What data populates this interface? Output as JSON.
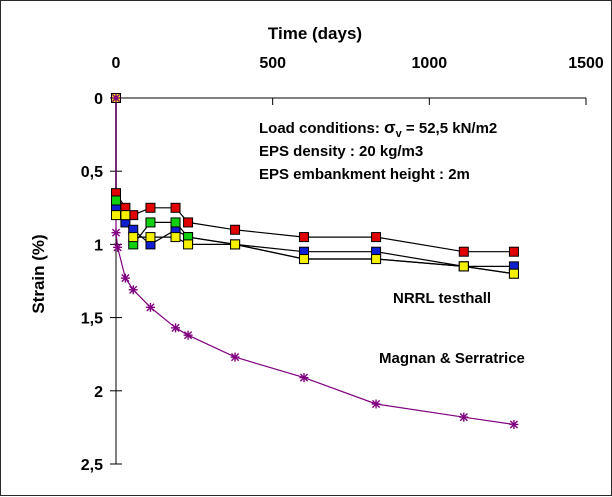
{
  "chart_data": {
    "type": "line",
    "title": "",
    "xlabel": "Time (days)",
    "ylabel": "Strain (%)",
    "x_axis_position": "top",
    "y_axis_inverted": true,
    "xlim": [
      0,
      1500
    ],
    "ylim": [
      0,
      2.5
    ],
    "x_ticks": [
      0,
      500,
      1000,
      1500
    ],
    "x_tick_labels": [
      "0",
      "500",
      "1000",
      "1500"
    ],
    "y_ticks": [
      0,
      0.5,
      1,
      1.5,
      2,
      2.5
    ],
    "y_tick_labels": [
      "0",
      "0,5",
      "1",
      "1,5",
      "2",
      "2,5"
    ],
    "grid": false,
    "annotations": {
      "load_prefix": "Load conditions: ",
      "sigma": "σ",
      "sigma_sub": "v",
      "load_suffix": " = 52,5 kN/m2",
      "density": "EPS density : 20 kg/m3",
      "height": "EPS embankment height : 2m",
      "nrrl": "NRRL testhall",
      "magnan": "Magnan & Serratrice"
    },
    "series": [
      {
        "marker": "square",
        "color": "#e00000",
        "points": [
          [
            0,
            0
          ],
          [
            0,
            0.65
          ],
          [
            30,
            0.75
          ],
          [
            55,
            0.8
          ],
          [
            110,
            0.75
          ],
          [
            190,
            0.75
          ],
          [
            230,
            0.85
          ],
          [
            380,
            0.9
          ],
          [
            600,
            0.95
          ],
          [
            830,
            0.95
          ],
          [
            1110,
            1.05
          ],
          [
            1270,
            1.05
          ]
        ]
      },
      {
        "marker": "square",
        "color": "#1020d0",
        "points": [
          [
            0,
            0
          ],
          [
            0,
            0.75
          ],
          [
            30,
            0.85
          ],
          [
            55,
            0.9
          ],
          [
            110,
            1.0
          ],
          [
            190,
            0.9
          ],
          [
            230,
            0.95
          ],
          [
            380,
            1.0
          ],
          [
            600,
            1.05
          ],
          [
            830,
            1.05
          ],
          [
            1110,
            1.15
          ],
          [
            1270,
            1.15
          ]
        ]
      },
      {
        "marker": "square",
        "color": "#10d010",
        "points": [
          [
            0,
            0
          ],
          [
            0,
            0.7
          ],
          [
            30,
            0.8
          ],
          [
            55,
            1.0
          ],
          [
            110,
            0.85
          ],
          [
            190,
            0.85
          ],
          [
            230,
            0.95
          ],
          [
            380,
            1.0
          ],
          [
            600,
            1.1
          ],
          [
            830,
            1.1
          ],
          [
            1110,
            1.15
          ],
          [
            1270,
            1.2
          ]
        ]
      },
      {
        "marker": "square",
        "color": "#f5f000",
        "points": [
          [
            0,
            0
          ],
          [
            0,
            0.8
          ],
          [
            30,
            0.8
          ],
          [
            55,
            0.95
          ],
          [
            110,
            0.95
          ],
          [
            190,
            0.95
          ],
          [
            230,
            1.0
          ],
          [
            380,
            1.0
          ],
          [
            600,
            1.1
          ],
          [
            830,
            1.1
          ],
          [
            1110,
            1.15
          ],
          [
            1270,
            1.2
          ]
        ]
      },
      {
        "marker": "asterisk",
        "color": "#800080",
        "points": [
          [
            0,
            0
          ],
          [
            0,
            0.92
          ],
          [
            5,
            1.02
          ],
          [
            30,
            1.23
          ],
          [
            55,
            1.31
          ],
          [
            110,
            1.43
          ],
          [
            190,
            1.57
          ],
          [
            230,
            1.62
          ],
          [
            380,
            1.77
          ],
          [
            600,
            1.91
          ],
          [
            830,
            2.09
          ],
          [
            1110,
            2.18
          ],
          [
            1270,
            2.23
          ]
        ]
      }
    ]
  }
}
